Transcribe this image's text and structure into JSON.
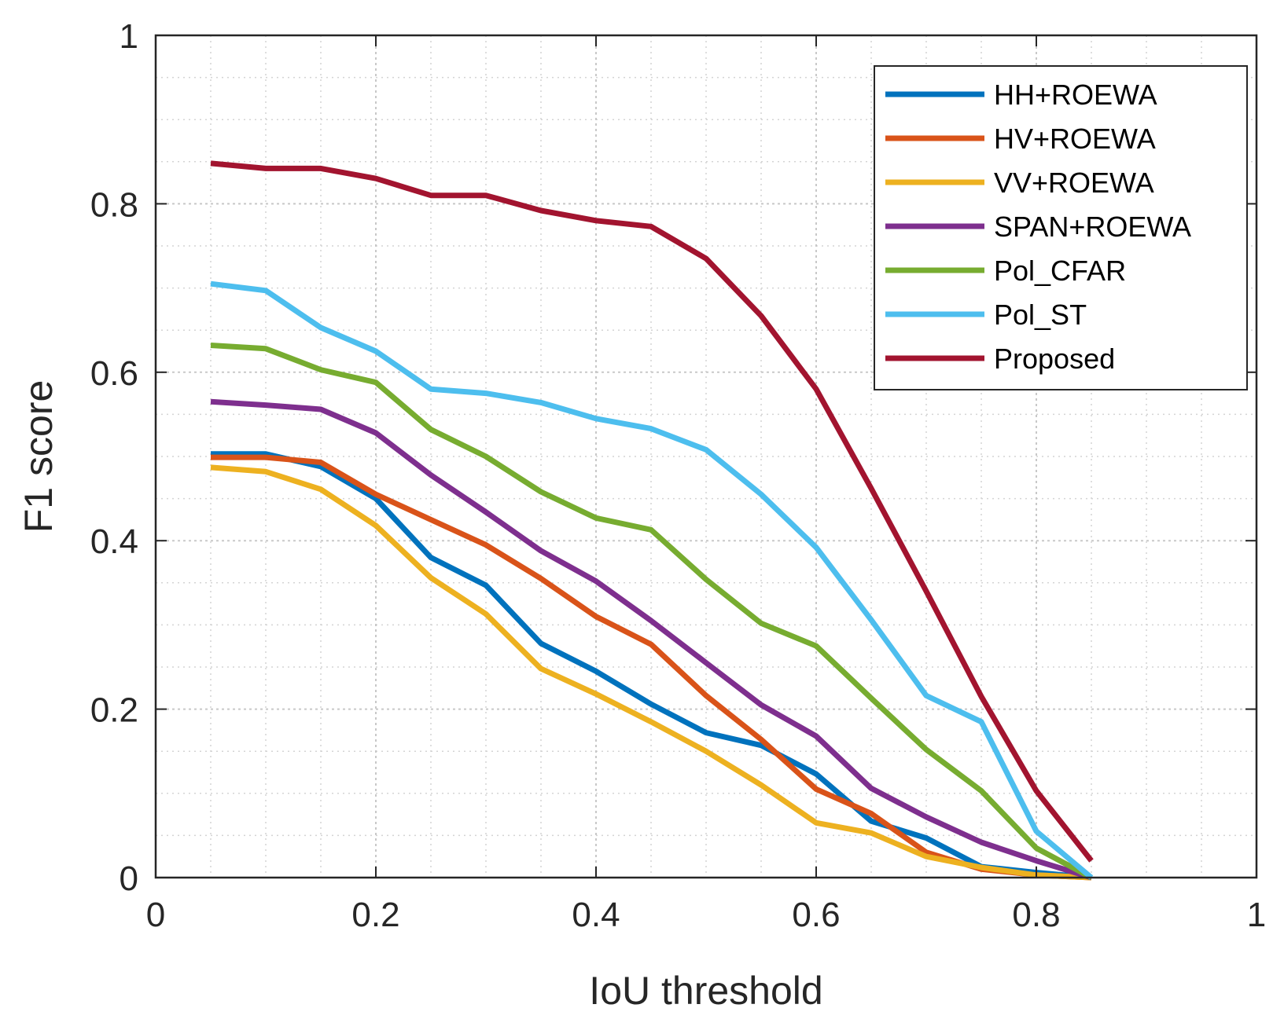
{
  "chart_data": {
    "type": "line",
    "title": "",
    "xlabel": "IoU threshold",
    "ylabel": "F1 score",
    "xlim": [
      0,
      1
    ],
    "ylim": [
      0,
      1
    ],
    "xticks": [
      0,
      0.2,
      0.4,
      0.6,
      0.8,
      1
    ],
    "xtick_labels": [
      "0",
      "0.2",
      "0.4",
      "0.6",
      "0.8",
      "1"
    ],
    "yticks": [
      0,
      0.2,
      0.4,
      0.6,
      0.8,
      1
    ],
    "ytick_labels": [
      "0",
      "0.2",
      "0.4",
      "0.6",
      "0.8",
      "1"
    ],
    "grid": true,
    "minor_grid": true,
    "legend_position": "top-right",
    "x": [
      0.05,
      0.1,
      0.15,
      0.2,
      0.25,
      0.3,
      0.35,
      0.4,
      0.45,
      0.5,
      0.55,
      0.6,
      0.65,
      0.7,
      0.75,
      0.8,
      0.85
    ],
    "series": [
      {
        "name": "HH+ROEWA",
        "color": "#0072BD",
        "values": [
          0.503,
          0.503,
          0.488,
          0.45,
          0.38,
          0.347,
          0.278,
          0.245,
          0.206,
          0.172,
          0.157,
          0.123,
          0.067,
          0.047,
          0.013,
          0.006,
          0.0
        ]
      },
      {
        "name": "HV+ROEWA",
        "color": "#D95319",
        "values": [
          0.499,
          0.499,
          0.493,
          0.455,
          0.425,
          0.395,
          0.355,
          0.31,
          0.277,
          0.216,
          0.164,
          0.105,
          0.076,
          0.03,
          0.01,
          0.003,
          0.0
        ]
      },
      {
        "name": "VV+ROEWA",
        "color": "#EDB120",
        "values": [
          0.487,
          0.482,
          0.461,
          0.418,
          0.356,
          0.313,
          0.248,
          0.218,
          0.185,
          0.15,
          0.11,
          0.065,
          0.053,
          0.025,
          0.012,
          0.003,
          0.0
        ]
      },
      {
        "name": "SPAN+ROEWA",
        "color": "#7E2F8E",
        "values": [
          0.565,
          0.561,
          0.556,
          0.528,
          0.478,
          0.434,
          0.388,
          0.352,
          0.305,
          0.255,
          0.205,
          0.168,
          0.106,
          0.072,
          0.042,
          0.02,
          0.0
        ]
      },
      {
        "name": "Pol_CFAR",
        "color": "#77AC30",
        "values": [
          0.632,
          0.628,
          0.603,
          0.588,
          0.532,
          0.5,
          0.458,
          0.427,
          0.413,
          0.354,
          0.302,
          0.275,
          0.213,
          0.152,
          0.103,
          0.035,
          0.0
        ]
      },
      {
        "name": "Pol_ST",
        "color": "#4DBEEE",
        "values": [
          0.705,
          0.697,
          0.653,
          0.625,
          0.58,
          0.575,
          0.564,
          0.545,
          0.533,
          0.508,
          0.455,
          0.392,
          0.306,
          0.216,
          0.185,
          0.055,
          0.0
        ]
      },
      {
        "name": "Proposed",
        "color": "#A2142F",
        "values": [
          0.848,
          0.842,
          0.842,
          0.83,
          0.81,
          0.81,
          0.792,
          0.78,
          0.773,
          0.735,
          0.667,
          0.58,
          0.462,
          0.34,
          0.215,
          0.103,
          0.02
        ]
      }
    ]
  }
}
